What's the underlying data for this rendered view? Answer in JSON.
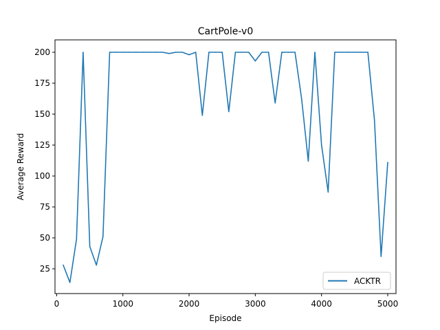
{
  "chart_data": {
    "type": "line",
    "title": "CartPole-v0",
    "xlabel": "Episode",
    "ylabel": "Average Reward",
    "xlim": [
      -25,
      5125
    ],
    "ylim": [
      5,
      210
    ],
    "xticks": [
      0,
      1000,
      2000,
      3000,
      4000,
      5000
    ],
    "yticks": [
      25,
      50,
      75,
      100,
      125,
      150,
      175,
      200
    ],
    "grid": false,
    "legend_position": "bottom-right",
    "series": [
      {
        "name": "ACKTR",
        "color": "#1f77b4",
        "x": [
          100,
          200,
          300,
          400,
          500,
          600,
          700,
          800,
          900,
          1000,
          1100,
          1200,
          1300,
          1400,
          1500,
          1600,
          1700,
          1800,
          1900,
          2000,
          2100,
          2200,
          2300,
          2400,
          2500,
          2600,
          2700,
          2800,
          2900,
          3000,
          3100,
          3200,
          3300,
          3400,
          3500,
          3600,
          3700,
          3800,
          3900,
          4000,
          4100,
          4200,
          4300,
          4400,
          4500,
          4600,
          4700,
          4800,
          4900,
          5000
        ],
        "y": [
          28,
          14,
          49,
          200,
          43,
          28,
          51,
          200,
          200,
          200,
          200,
          200,
          200,
          200,
          200,
          200,
          199,
          200,
          200,
          198,
          200,
          149,
          200,
          200,
          200,
          152,
          200,
          200,
          200,
          193,
          200,
          200,
          159,
          200,
          200,
          200,
          162,
          112,
          200,
          125,
          87,
          200,
          200,
          200,
          200,
          200,
          200,
          145,
          35,
          111
        ]
      }
    ]
  }
}
